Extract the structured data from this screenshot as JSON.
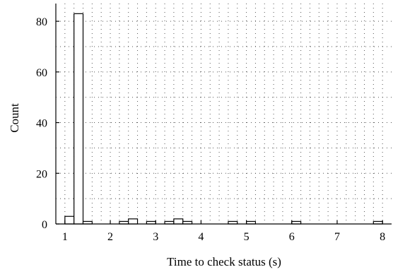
{
  "chart_data": {
    "type": "bar",
    "title": "",
    "xlabel": "Time to check status (s)",
    "ylabel": "Count",
    "xlim": [
      0.8,
      8.2
    ],
    "ylim": [
      0,
      87
    ],
    "xticks": [
      1,
      2,
      3,
      4,
      5,
      6,
      7,
      8
    ],
    "yticks": [
      0,
      20,
      40,
      60,
      80
    ],
    "grid": "dotted, both axes",
    "bin_width": 0.2,
    "bins": [
      {
        "x0": 1.0,
        "count": 3
      },
      {
        "x0": 1.2,
        "count": 83
      },
      {
        "x0": 1.4,
        "count": 1
      },
      {
        "x0": 2.2,
        "count": 1
      },
      {
        "x0": 2.4,
        "count": 2
      },
      {
        "x0": 2.8,
        "count": 1
      },
      {
        "x0": 3.2,
        "count": 1
      },
      {
        "x0": 3.4,
        "count": 2
      },
      {
        "x0": 3.6,
        "count": 1
      },
      {
        "x0": 4.6,
        "count": 1
      },
      {
        "x0": 5.0,
        "count": 1
      },
      {
        "x0": 6.0,
        "count": 1
      },
      {
        "x0": 7.8,
        "count": 1
      }
    ]
  }
}
